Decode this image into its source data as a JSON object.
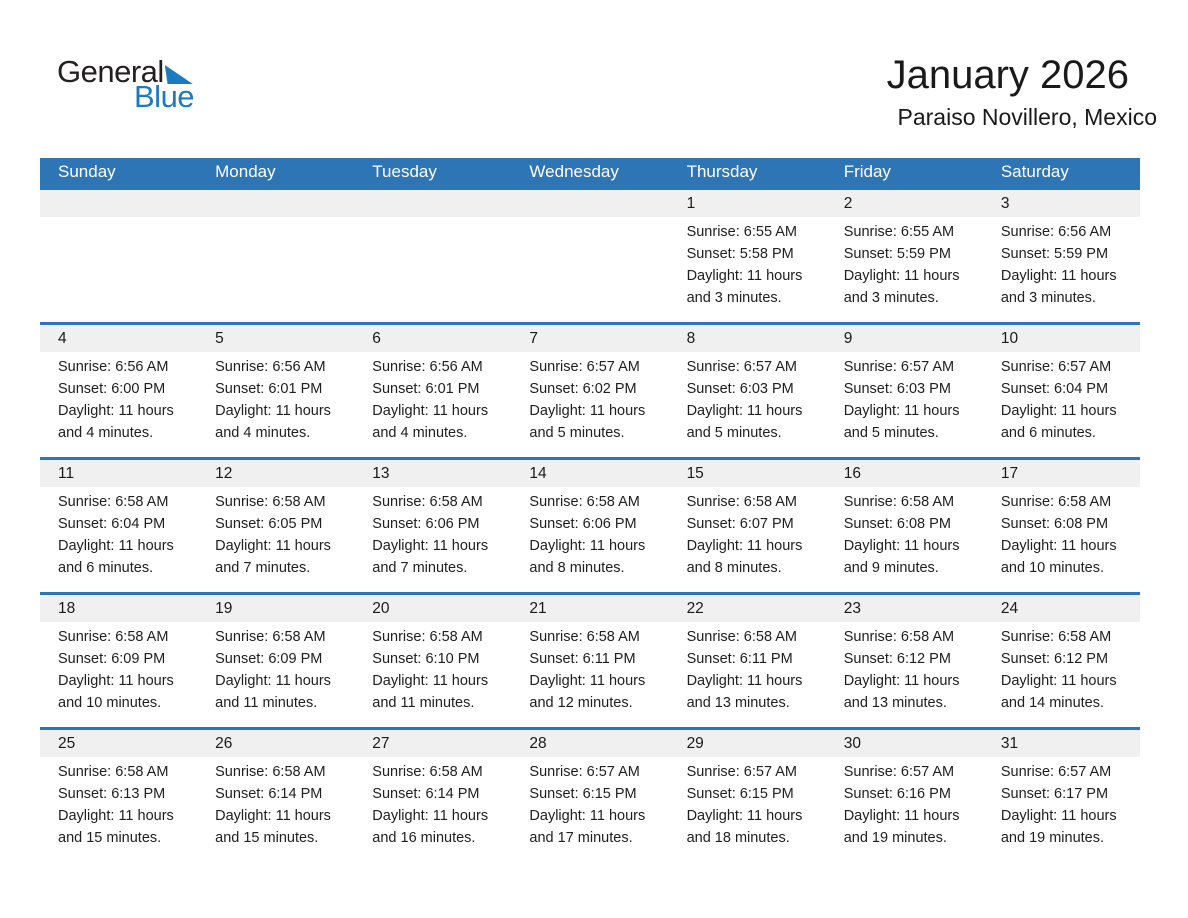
{
  "logo": {
    "general": "General",
    "blue": "Blue"
  },
  "header": {
    "title": "January 2026",
    "subtitle": "Paraiso Novillero, Mexico"
  },
  "weekdays": [
    "Sunday",
    "Monday",
    "Tuesday",
    "Wednesday",
    "Thursday",
    "Friday",
    "Saturday"
  ],
  "colors": {
    "header_blue": "#2E75B6",
    "week_line_blue": "#2E75B6",
    "day_strip_gray": "#F0F0F0",
    "logo_blue": "#1B7AC0",
    "text_dark": "#202020"
  },
  "weeks": [
    [
      {},
      {},
      {},
      {},
      {
        "day": "1",
        "sunrise": "Sunrise: 6:55 AM",
        "sunset": "Sunset: 5:58 PM",
        "daylight_line1": "Daylight: 11 hours",
        "daylight_line2": "and 3 minutes."
      },
      {
        "day": "2",
        "sunrise": "Sunrise: 6:55 AM",
        "sunset": "Sunset: 5:59 PM",
        "daylight_line1": "Daylight: 11 hours",
        "daylight_line2": "and 3 minutes."
      },
      {
        "day": "3",
        "sunrise": "Sunrise: 6:56 AM",
        "sunset": "Sunset: 5:59 PM",
        "daylight_line1": "Daylight: 11 hours",
        "daylight_line2": "and 3 minutes."
      }
    ],
    [
      {
        "day": "4",
        "sunrise": "Sunrise: 6:56 AM",
        "sunset": "Sunset: 6:00 PM",
        "daylight_line1": "Daylight: 11 hours",
        "daylight_line2": "and 4 minutes."
      },
      {
        "day": "5",
        "sunrise": "Sunrise: 6:56 AM",
        "sunset": "Sunset: 6:01 PM",
        "daylight_line1": "Daylight: 11 hours",
        "daylight_line2": "and 4 minutes."
      },
      {
        "day": "6",
        "sunrise": "Sunrise: 6:56 AM",
        "sunset": "Sunset: 6:01 PM",
        "daylight_line1": "Daylight: 11 hours",
        "daylight_line2": "and 4 minutes."
      },
      {
        "day": "7",
        "sunrise": "Sunrise: 6:57 AM",
        "sunset": "Sunset: 6:02 PM",
        "daylight_line1": "Daylight: 11 hours",
        "daylight_line2": "and 5 minutes."
      },
      {
        "day": "8",
        "sunrise": "Sunrise: 6:57 AM",
        "sunset": "Sunset: 6:03 PM",
        "daylight_line1": "Daylight: 11 hours",
        "daylight_line2": "and 5 minutes."
      },
      {
        "day": "9",
        "sunrise": "Sunrise: 6:57 AM",
        "sunset": "Sunset: 6:03 PM",
        "daylight_line1": "Daylight: 11 hours",
        "daylight_line2": "and 5 minutes."
      },
      {
        "day": "10",
        "sunrise": "Sunrise: 6:57 AM",
        "sunset": "Sunset: 6:04 PM",
        "daylight_line1": "Daylight: 11 hours",
        "daylight_line2": "and 6 minutes."
      }
    ],
    [
      {
        "day": "11",
        "sunrise": "Sunrise: 6:58 AM",
        "sunset": "Sunset: 6:04 PM",
        "daylight_line1": "Daylight: 11 hours",
        "daylight_line2": "and 6 minutes."
      },
      {
        "day": "12",
        "sunrise": "Sunrise: 6:58 AM",
        "sunset": "Sunset: 6:05 PM",
        "daylight_line1": "Daylight: 11 hours",
        "daylight_line2": "and 7 minutes."
      },
      {
        "day": "13",
        "sunrise": "Sunrise: 6:58 AM",
        "sunset": "Sunset: 6:06 PM",
        "daylight_line1": "Daylight: 11 hours",
        "daylight_line2": "and 7 minutes."
      },
      {
        "day": "14",
        "sunrise": "Sunrise: 6:58 AM",
        "sunset": "Sunset: 6:06 PM",
        "daylight_line1": "Daylight: 11 hours",
        "daylight_line2": "and 8 minutes."
      },
      {
        "day": "15",
        "sunrise": "Sunrise: 6:58 AM",
        "sunset": "Sunset: 6:07 PM",
        "daylight_line1": "Daylight: 11 hours",
        "daylight_line2": "and 8 minutes."
      },
      {
        "day": "16",
        "sunrise": "Sunrise: 6:58 AM",
        "sunset": "Sunset: 6:08 PM",
        "daylight_line1": "Daylight: 11 hours",
        "daylight_line2": "and 9 minutes."
      },
      {
        "day": "17",
        "sunrise": "Sunrise: 6:58 AM",
        "sunset": "Sunset: 6:08 PM",
        "daylight_line1": "Daylight: 11 hours",
        "daylight_line2": "and 10 minutes."
      }
    ],
    [
      {
        "day": "18",
        "sunrise": "Sunrise: 6:58 AM",
        "sunset": "Sunset: 6:09 PM",
        "daylight_line1": "Daylight: 11 hours",
        "daylight_line2": "and 10 minutes."
      },
      {
        "day": "19",
        "sunrise": "Sunrise: 6:58 AM",
        "sunset": "Sunset: 6:09 PM",
        "daylight_line1": "Daylight: 11 hours",
        "daylight_line2": "and 11 minutes."
      },
      {
        "day": "20",
        "sunrise": "Sunrise: 6:58 AM",
        "sunset": "Sunset: 6:10 PM",
        "daylight_line1": "Daylight: 11 hours",
        "daylight_line2": "and 11 minutes."
      },
      {
        "day": "21",
        "sunrise": "Sunrise: 6:58 AM",
        "sunset": "Sunset: 6:11 PM",
        "daylight_line1": "Daylight: 11 hours",
        "daylight_line2": "and 12 minutes."
      },
      {
        "day": "22",
        "sunrise": "Sunrise: 6:58 AM",
        "sunset": "Sunset: 6:11 PM",
        "daylight_line1": "Daylight: 11 hours",
        "daylight_line2": "and 13 minutes."
      },
      {
        "day": "23",
        "sunrise": "Sunrise: 6:58 AM",
        "sunset": "Sunset: 6:12 PM",
        "daylight_line1": "Daylight: 11 hours",
        "daylight_line2": "and 13 minutes."
      },
      {
        "day": "24",
        "sunrise": "Sunrise: 6:58 AM",
        "sunset": "Sunset: 6:12 PM",
        "daylight_line1": "Daylight: 11 hours",
        "daylight_line2": "and 14 minutes."
      }
    ],
    [
      {
        "day": "25",
        "sunrise": "Sunrise: 6:58 AM",
        "sunset": "Sunset: 6:13 PM",
        "daylight_line1": "Daylight: 11 hours",
        "daylight_line2": "and 15 minutes."
      },
      {
        "day": "26",
        "sunrise": "Sunrise: 6:58 AM",
        "sunset": "Sunset: 6:14 PM",
        "daylight_line1": "Daylight: 11 hours",
        "daylight_line2": "and 15 minutes."
      },
      {
        "day": "27",
        "sunrise": "Sunrise: 6:58 AM",
        "sunset": "Sunset: 6:14 PM",
        "daylight_line1": "Daylight: 11 hours",
        "daylight_line2": "and 16 minutes."
      },
      {
        "day": "28",
        "sunrise": "Sunrise: 6:57 AM",
        "sunset": "Sunset: 6:15 PM",
        "daylight_line1": "Daylight: 11 hours",
        "daylight_line2": "and 17 minutes."
      },
      {
        "day": "29",
        "sunrise": "Sunrise: 6:57 AM",
        "sunset": "Sunset: 6:15 PM",
        "daylight_line1": "Daylight: 11 hours",
        "daylight_line2": "and 18 minutes."
      },
      {
        "day": "30",
        "sunrise": "Sunrise: 6:57 AM",
        "sunset": "Sunset: 6:16 PM",
        "daylight_line1": "Daylight: 11 hours",
        "daylight_line2": "and 19 minutes."
      },
      {
        "day": "31",
        "sunrise": "Sunrise: 6:57 AM",
        "sunset": "Sunset: 6:17 PM",
        "daylight_line1": "Daylight: 11 hours",
        "daylight_line2": "and 19 minutes."
      }
    ]
  ]
}
